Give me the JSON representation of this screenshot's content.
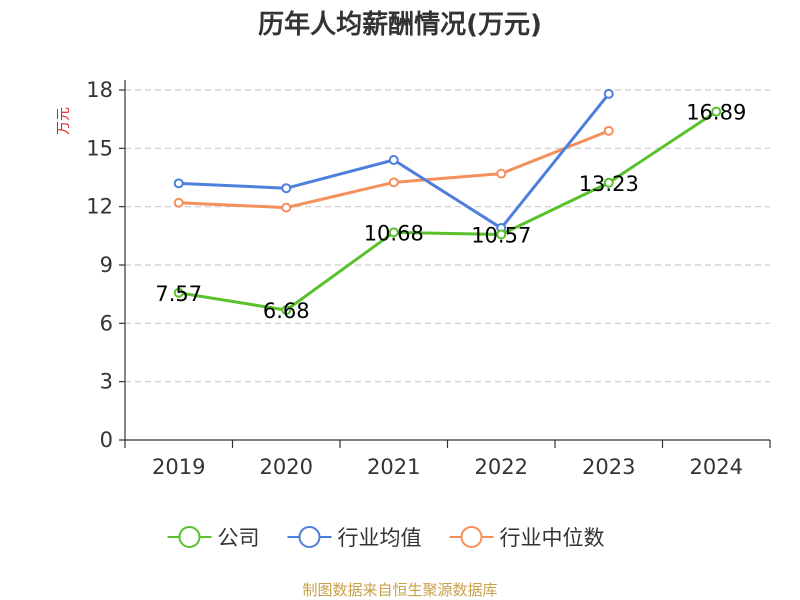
{
  "chart_data": {
    "type": "line",
    "title": "历年人均薪酬情况(万元)",
    "ylabel": "万元",
    "xlabel": "",
    "categories": [
      "2019",
      "2020",
      "2021",
      "2022",
      "2023",
      "2024"
    ],
    "ylim": [
      0,
      18
    ],
    "yticks": [
      "0",
      "3",
      "6",
      "9",
      "12",
      "15",
      "18"
    ],
    "grid": true,
    "legend_position": "bottom",
    "series": [
      {
        "name": "公司",
        "color": "#5ac12d",
        "values": [
          7.57,
          6.68,
          10.68,
          10.57,
          13.23,
          16.89
        ],
        "labels": [
          "7.57",
          "6.68",
          "10.68",
          "10.57",
          "13.23",
          "16.89"
        ]
      },
      {
        "name": "行业均值",
        "color": "#4e7fdc",
        "values": [
          13.2,
          12.95,
          14.4,
          10.9,
          17.8,
          null
        ]
      },
      {
        "name": "行业中位数",
        "color": "#f58f5c",
        "values": [
          12.2,
          11.95,
          13.25,
          13.7,
          15.9,
          null
        ]
      }
    ]
  },
  "source_note": "制图数据来自恒生聚源数据库",
  "colors": {
    "axis": "#333333",
    "grid": "#cccccc",
    "ylabel": "#e0261f",
    "source": "#c9a14a"
  }
}
